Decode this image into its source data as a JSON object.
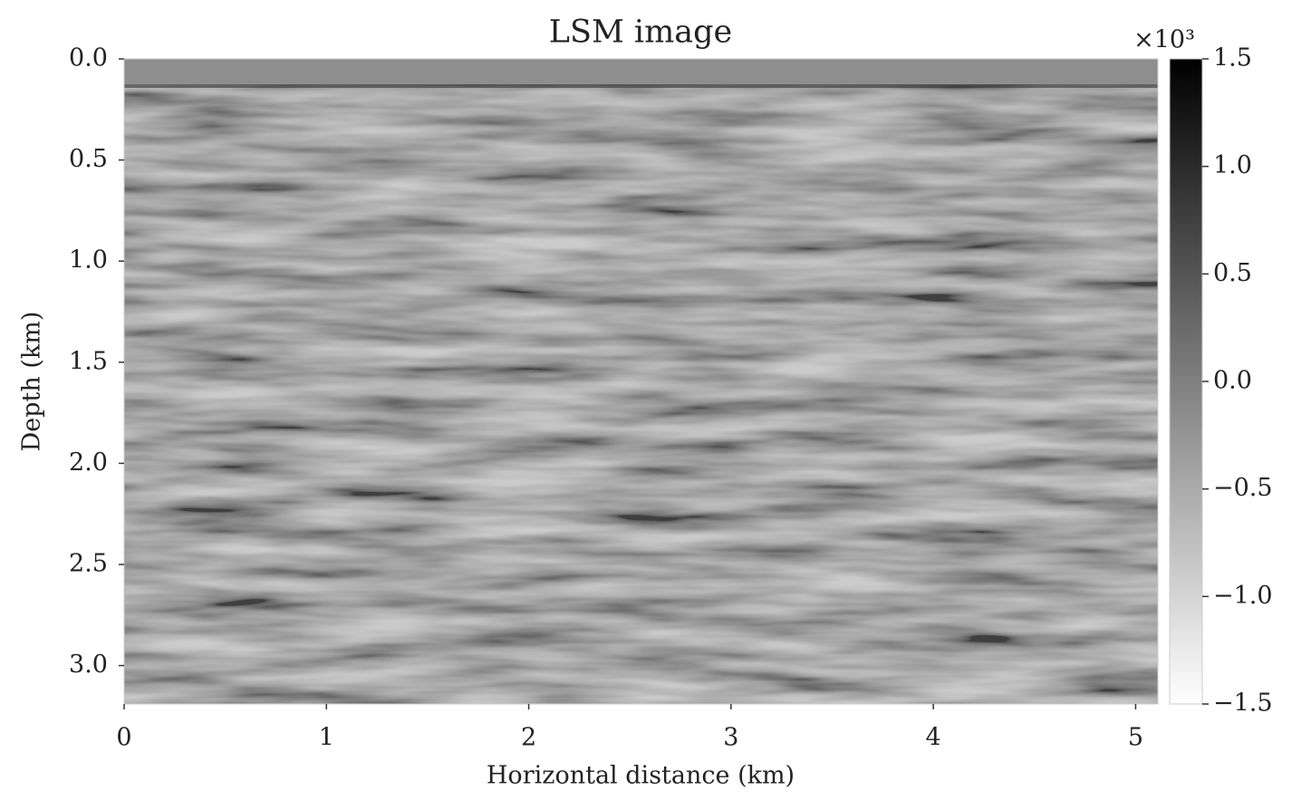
{
  "chart_data": {
    "type": "image",
    "title": "LSM image",
    "xlabel": "Horizontal distance (km)",
    "ylabel": "Depth (km)",
    "xlim": [
      0,
      5.11
    ],
    "ylim": [
      0,
      3.19
    ],
    "y_inverted": true,
    "xticks": [
      0,
      1,
      2,
      3,
      4,
      5
    ],
    "yticks": [
      {
        "value": 0,
        "label": "0.0"
      },
      0.5,
      {
        "value": 1,
        "label": "1.0"
      },
      1.5,
      {
        "value": 2,
        "label": "2.0"
      },
      2.5,
      {
        "value": 3,
        "label": "3.0"
      }
    ],
    "colormap": [
      "#ffffff",
      "#000000"
    ],
    "colorbar": {
      "lim": [
        -1.5,
        1.5
      ],
      "offset_label": "×10³",
      "ticks": [
        {
          "value": -1.5,
          "label": "−1.5"
        },
        {
          "value": -1,
          "label": "−1.0"
        },
        {
          "value": -0.5,
          "label": "−0.5"
        },
        {
          "value": 0,
          "label": "0.0"
        },
        0.5,
        {
          "value": 1,
          "label": "1.0"
        },
        1.5
      ]
    }
  }
}
